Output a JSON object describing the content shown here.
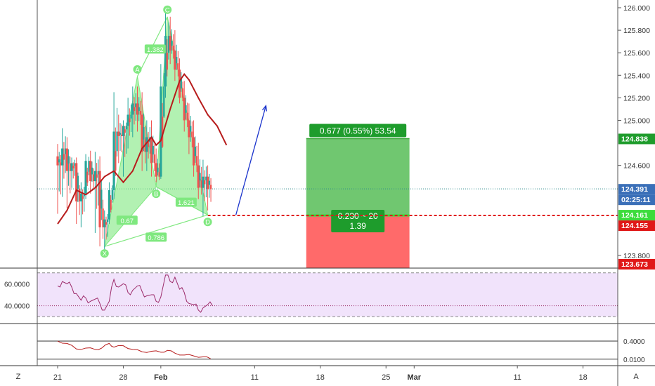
{
  "chart_data": {
    "type": "candlestick",
    "price_axis": {
      "range": [
        123.673,
        126.08
      ],
      "ticks": [
        "126.000",
        "125.800",
        "125.600",
        "125.400",
        "125.200",
        "125.000",
        "124.600",
        "123.800"
      ],
      "tick_values": [
        126.0,
        125.8,
        125.6,
        125.4,
        125.2,
        125.0,
        124.6,
        123.8
      ]
    },
    "time_axis": {
      "labels": [
        "21",
        "28",
        "Feb",
        "11",
        "18",
        "25",
        "Mar",
        "11",
        "18"
      ],
      "label_days": [
        0,
        7,
        11,
        21,
        28,
        35,
        38,
        49,
        56
      ]
    },
    "price_tags": [
      {
        "text": "124.838",
        "value": 124.838,
        "color": "#1e9c2c"
      },
      {
        "text": "124.391",
        "value": 124.391,
        "color": "#3a6fb8"
      },
      {
        "text": "02:25:11",
        "value": 124.3,
        "color": "#3a6fb8"
      },
      {
        "text": "124.161",
        "value": 124.161,
        "color": "#3cdc3c"
      },
      {
        "text": "124.155",
        "value": 124.155,
        "color": "#e01818"
      },
      {
        "text": "123.673",
        "value": 123.673,
        "color": "#e01818"
      }
    ],
    "current_price": 124.391,
    "entry_price": 124.155,
    "moving_average": {
      "color": "#b71c1c",
      "points": [
        [
          0,
          124.08
        ],
        [
          1,
          124.2
        ],
        [
          2,
          124.38
        ],
        [
          3,
          124.34
        ],
        [
          4,
          124.4
        ],
        [
          5,
          124.5
        ],
        [
          6,
          124.55
        ],
        [
          7,
          124.45
        ],
        [
          8,
          124.55
        ],
        [
          9,
          124.75
        ],
        [
          10,
          124.85
        ],
        [
          10.5,
          124.78
        ],
        [
          11,
          124.82
        ],
        [
          12,
          125.1
        ],
        [
          13,
          125.35
        ],
        [
          13.5,
          125.41
        ],
        [
          14,
          125.36
        ],
        [
          15,
          125.2
        ],
        [
          16,
          125.05
        ],
        [
          17,
          124.95
        ],
        [
          18,
          124.78
        ]
      ]
    },
    "harmonic_pattern": {
      "type": "Gartley",
      "fill_color": "#7fe87f",
      "points": [
        {
          "label": "X",
          "day": 5,
          "price": 123.88
        },
        {
          "label": "A",
          "day": 8.5,
          "price": 125.39
        },
        {
          "label": "B",
          "day": 10.5,
          "price": 124.41
        },
        {
          "label": "C",
          "day": 11.7,
          "price": 125.92
        },
        {
          "label": "D",
          "day": 16,
          "price": 124.16
        }
      ],
      "ratios": [
        {
          "text": "1.382",
          "day": 10.4,
          "price": 125.63
        },
        {
          "text": "0.67",
          "day": 7.4,
          "price": 124.11
        },
        {
          "text": "1.621",
          "day": 13.7,
          "price": 124.27
        },
        {
          "text": "0.786",
          "day": 10.5,
          "price": 123.96
        }
      ]
    },
    "projection_arrow": {
      "from": [
        19,
        124.16
      ],
      "to": [
        22.2,
        125.13
      ],
      "color": "#1a33cc"
    },
    "position": {
      "day_start": 26.5,
      "day_end": 37.5,
      "target": 124.838,
      "entry": 124.155,
      "stop": 123.673,
      "target_label": "0.677 (0.55%) 53.54",
      "ratio_label_1": "0.230 ~ 20",
      "ratio_label_2": "1.39",
      "profit_color": "#70c770",
      "loss_color": "#ff6a6a"
    },
    "rsi": {
      "ticks": [
        "60.0000",
        "40.0000"
      ],
      "tick_values": [
        60,
        40
      ],
      "band": [
        70,
        30
      ],
      "range": [
        25,
        73
      ],
      "color": "#9c2a6a",
      "values": [
        [
          0,
          58
        ],
        [
          0.5,
          62
        ],
        [
          1,
          60
        ],
        [
          1.5,
          57
        ],
        [
          2,
          51
        ],
        [
          2.5,
          45
        ],
        [
          3,
          47
        ],
        [
          3.5,
          44
        ],
        [
          4,
          46
        ],
        [
          4.5,
          42
        ],
        [
          5,
          36
        ],
        [
          5.5,
          44
        ],
        [
          6,
          64
        ],
        [
          6.5,
          57
        ],
        [
          7,
          60
        ],
        [
          7.5,
          52
        ],
        [
          8,
          54
        ],
        [
          8.5,
          58
        ],
        [
          9,
          53
        ],
        [
          9.5,
          49
        ],
        [
          10,
          50
        ],
        [
          10.5,
          44
        ],
        [
          11,
          48
        ],
        [
          11.5,
          68
        ],
        [
          12,
          62
        ],
        [
          12.5,
          66
        ],
        [
          13,
          55
        ],
        [
          13.5,
          52
        ],
        [
          14,
          42
        ],
        [
          14.5,
          41
        ],
        [
          15,
          36
        ],
        [
          15.5,
          38
        ],
        [
          16,
          41
        ],
        [
          16.5,
          40
        ]
      ]
    },
    "lower_indicator": {
      "ticks": [
        "0.4000",
        "0.0100"
      ],
      "tick_values": [
        0.4,
        0.01
      ],
      "range": [
        -0.1,
        0.75
      ],
      "color": "#b71c1c",
      "values": [
        [
          0,
          0.4
        ],
        [
          1,
          0.35
        ],
        [
          2,
          0.23
        ],
        [
          3,
          0.25
        ],
        [
          4,
          0.22
        ],
        [
          4.7,
          0.25
        ],
        [
          5.5,
          0.35
        ],
        [
          6,
          0.27
        ],
        [
          7,
          0.3
        ],
        [
          8,
          0.22
        ],
        [
          9,
          0.17
        ],
        [
          10,
          0.18
        ],
        [
          11,
          0.16
        ],
        [
          11.7,
          0.2
        ],
        [
          12.5,
          0.14
        ],
        [
          13.5,
          0.1
        ],
        [
          14.5,
          0.08
        ],
        [
          15.5,
          0.06
        ],
        [
          16.3,
          0.02
        ]
      ]
    },
    "candles": [
      [
        0,
        124.68,
        124.79,
        124.17,
        124.6
      ],
      [
        0.5,
        124.6,
        124.93,
        124.32,
        124.75
      ],
      [
        1,
        124.75,
        124.85,
        124.22,
        124.55
      ],
      [
        1.5,
        124.55,
        124.67,
        124.4,
        124.62
      ],
      [
        2,
        124.62,
        124.67,
        124.08,
        124.28
      ],
      [
        2.5,
        124.28,
        124.45,
        124.05,
        124.35
      ],
      [
        3,
        124.35,
        124.7,
        124.3,
        124.64
      ],
      [
        3.5,
        124.64,
        124.73,
        124.35,
        124.46
      ],
      [
        4,
        124.46,
        124.72,
        124.0,
        124.55
      ],
      [
        4.5,
        124.55,
        124.68,
        123.88,
        124.05
      ],
      [
        5,
        124.05,
        124.2,
        123.83,
        124.12
      ],
      [
        5.5,
        124.12,
        124.45,
        124.08,
        124.38
      ],
      [
        6,
        124.38,
        125.25,
        124.3,
        124.9
      ],
      [
        6.5,
        124.9,
        125.05,
        124.62,
        124.86
      ],
      [
        7,
        124.86,
        125.0,
        124.5,
        124.95
      ],
      [
        7.5,
        124.95,
        125.2,
        124.75,
        125.05
      ],
      [
        8,
        125.05,
        125.3,
        124.85,
        125.15
      ],
      [
        8.5,
        125.15,
        125.3,
        124.9,
        125.05
      ],
      [
        9,
        125.05,
        125.25,
        124.55,
        124.72
      ],
      [
        9.5,
        124.72,
        125.0,
        124.55,
        124.85
      ],
      [
        10,
        124.85,
        125.0,
        124.5,
        124.62
      ],
      [
        10.5,
        124.62,
        124.75,
        124.45,
        124.5
      ],
      [
        11,
        124.5,
        125.5,
        124.48,
        125.3
      ],
      [
        11.5,
        125.3,
        125.95,
        125.2,
        125.75
      ],
      [
        12,
        125.75,
        125.92,
        125.5,
        125.62
      ],
      [
        12.5,
        125.62,
        125.8,
        125.35,
        125.45
      ],
      [
        13,
        125.45,
        125.55,
        125.15,
        125.2
      ],
      [
        13.5,
        125.2,
        125.35,
        124.9,
        125.0
      ],
      [
        14,
        125.0,
        125.15,
        124.7,
        124.85
      ],
      [
        14.5,
        124.85,
        125.0,
        124.5,
        124.6
      ],
      [
        15,
        124.6,
        124.8,
        124.3,
        124.4
      ],
      [
        15.5,
        124.4,
        124.65,
        124.15,
        124.5
      ],
      [
        16,
        124.5,
        124.6,
        124.2,
        124.39
      ]
    ]
  },
  "axis_corners": {
    "left": "Z",
    "right": "A"
  }
}
